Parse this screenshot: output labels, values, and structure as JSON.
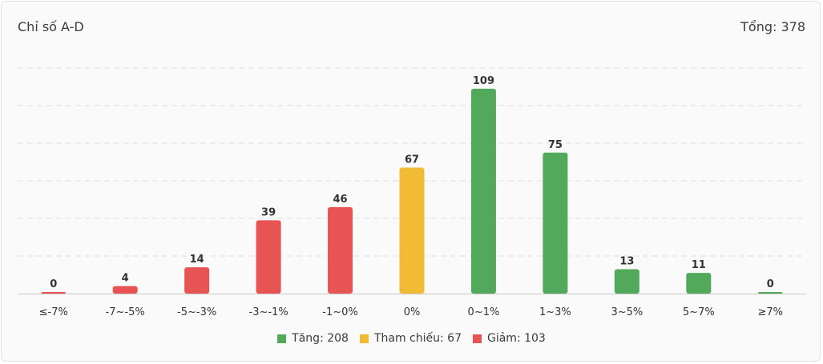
{
  "header": {
    "title": "Chỉ số A-D",
    "total_label": "Tổng: 378"
  },
  "colors": {
    "up": "#52a95b",
    "ref": "#f2bb36",
    "down": "#e85353",
    "grid": "#dddddd",
    "axis": "#c8c8c8"
  },
  "legend": [
    {
      "label": "Tăng: 208",
      "color_key": "up"
    },
    {
      "label": "Tham chiếu: 67",
      "color_key": "ref"
    },
    {
      "label": "Giảm: 103",
      "color_key": "down"
    }
  ],
  "chart_data": {
    "type": "bar",
    "title": "Chỉ số A-D",
    "categories": [
      "≤-7%",
      "-7~-5%",
      "-5~-3%",
      "-3~-1%",
      "-1~0%",
      "0%",
      "0~1%",
      "1~3%",
      "3~5%",
      "5~7%",
      "≥7%"
    ],
    "values": [
      0,
      4,
      14,
      39,
      46,
      67,
      109,
      75,
      13,
      11,
      0
    ],
    "bar_groups": [
      "down",
      "down",
      "down",
      "down",
      "down",
      "ref",
      "up",
      "up",
      "up",
      "up",
      "up"
    ],
    "ylim": [
      0,
      120
    ],
    "grid": true,
    "legend_position": "bottom"
  }
}
